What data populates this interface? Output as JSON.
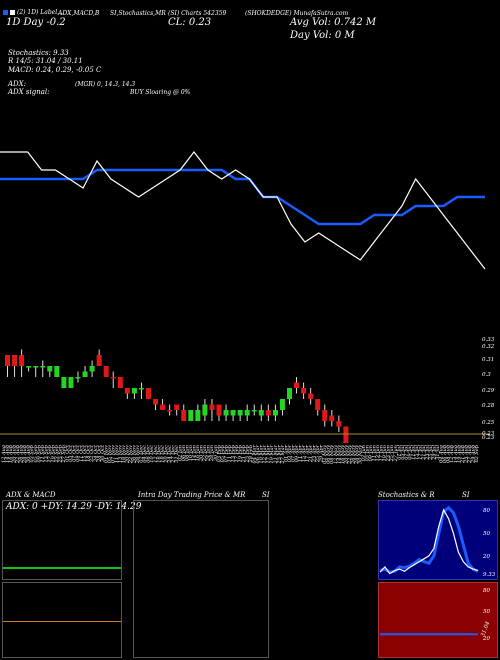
{
  "header": {
    "row1": [
      {
        "id": "h1",
        "text": "(2) 1D) Label..."
      },
      {
        "id": "h2",
        "text": "ADX,MACD,B"
      },
      {
        "id": "h3",
        "text": "SI,Stochastics,MR"
      },
      {
        "id": "h4",
        "text": "(SI) Charts 542359"
      },
      {
        "id": "h5",
        "text": "(SHOKDEDGE) MunafaSutra.com"
      }
    ],
    "day_change": "1D Day  -0.2",
    "close": "CL: 0.23",
    "avg_vol": "Avg Vol: 0.742  M",
    "day_vol": "Day Vol: 0  M",
    "stochastics": "Stochastics: 9.33",
    "r_stoch": "R  14/5: 31.04  / 30.11",
    "macd": "MACD: 0.24,  0.29,  -0.05  C",
    "adx": "ADX:",
    "adx_mid": "(MGR) 0,  14.3,  14.3",
    "adx_signal": "ADX  signal:",
    "adx_signal_value": "BUY Sloaring @ 0%",
    "legend_colors": [
      "#1a5cff",
      "#ffffff"
    ]
  },
  "price_axis_labels": [
    "0.33",
    "0.33",
    "0.32",
    "0.31",
    "0.3",
    "0.29",
    "0.28",
    "0.25",
    "0.23",
    "0.23",
    "0.21"
  ],
  "date_labels": [
    "12 Aug",
    "14 Aug",
    "16 Aug",
    "20 Aug",
    "22 Aug",
    "26 Aug",
    "28 Aug",
    "30 Aug",
    "03 Sep",
    "05 Sep",
    "09 Sep",
    "11 Sep",
    "13 Sep",
    "17 Sep",
    "19 Sep",
    "23 Sep",
    "25 Sep",
    "27 Sep",
    "01 Oct",
    "03 Oct",
    "07 Oct",
    "09 Oct",
    "11 Oct",
    "15 Oct",
    "18 Oct",
    "22 Oct",
    "24 Oct",
    "28 Oct",
    "30 Oct",
    "01 Nov",
    "05 Nov",
    "07 Nov",
    "11 Nov",
    "13 Nov",
    "18 Nov",
    "20 Nov",
    "22 Nov",
    "26 Nov",
    "28 Nov",
    "02 Dec",
    "04 Dec",
    "06 Dec",
    "10 Dec",
    "12 Dec",
    "16 Dec",
    "18 Dec",
    "20 Dec",
    "24 Dec",
    "27 Dec",
    "31 Dec",
    "02 Jan",
    "06 Jan",
    "08 Jan",
    "10 Jan",
    "14 Jan",
    "16 Jan",
    "20 Jan",
    "22 Jan",
    "24 Jan",
    "28 Jan",
    "30 Jan",
    "03 Feb",
    "05 Feb",
    "07 Feb",
    "11 Feb",
    "13 Feb",
    "17 Feb",
    "19 Feb",
    "21 Feb",
    "25 Feb",
    "28 Feb",
    "04 Mar",
    "06 Mar",
    "10 Mar",
    "12 Mar",
    "17 Mar",
    "19 Mar",
    "21 Mar",
    "25 Mar",
    "27 Mar",
    "01 Apr",
    "03 Apr",
    "07 Apr",
    "09 Apr",
    "11 Apr",
    "15 Apr",
    "17 Apr",
    "21 Apr",
    "23 Apr",
    "25 Apr",
    "29 Apr",
    "02 May",
    "06 May",
    "08 May",
    "12 May",
    "14 May",
    "16 May",
    "20 May",
    "22 May",
    "26 May",
    "28 May",
    "30 May",
    "03 Jun",
    "05 Jun",
    "09 Jun",
    "11 Jun",
    "13 Jun",
    "17 Jun",
    "19 Jun",
    "23 Jun",
    "25 Jun",
    "27 Jun",
    "01 Jul",
    "03 Jul",
    "07 Jul",
    "09 Jul",
    "11 Jul",
    "15 Jul",
    "17 Jul",
    "21 Jul",
    "23 Jul",
    "25 Jul",
    "29 Jul",
    "31 Jul",
    "04 Aug",
    "06 Aug",
    "08 Aug",
    "12 Aug",
    "14 Aug",
    "19 Aug",
    "21 Aug",
    "25 Aug",
    "27 Aug",
    "29 Aug",
    "02 Sep",
    "04 Sep"
  ],
  "panels": {
    "adx_macd": {
      "title": "ADX  & MACD",
      "readout": "ADX: 0   +DY: 14.29  -DY: 14.29"
    },
    "intraday": {
      "title": "Intra  Day Trading Price  & MR",
      "title_right": "SI"
    },
    "stoch": {
      "title": "Stochastics & R",
      "title_right": "SI",
      "axis": [
        "80",
        "50",
        "20",
        "9.33"
      ],
      "lower_axis": [
        "80",
        "50",
        "20",
        "31.04"
      ]
    }
  },
  "chart_data": [
    {
      "type": "line",
      "title": "",
      "series": [
        {
          "name": "",
          "color": "#1a5cff",
          "values": [
            0.52,
            0.52,
            0.52,
            0.52,
            0.52,
            0.52,
            0.52,
            0.53,
            0.53,
            0.53,
            0.53,
            0.53,
            0.53,
            0.53,
            0.53,
            0.53,
            0.53,
            0.52,
            0.52,
            0.5,
            0.5,
            0.49,
            0.48,
            0.47,
            0.47,
            0.47,
            0.47,
            0.48,
            0.48,
            0.48,
            0.49,
            0.49,
            0.49,
            0.5,
            0.5,
            0.5
          ]
        },
        {
          "name": "",
          "color": "#ffffff",
          "values": [
            0.55,
            0.55,
            0.55,
            0.53,
            0.53,
            0.52,
            0.51,
            0.54,
            0.52,
            0.51,
            0.5,
            0.51,
            0.52,
            0.53,
            0.55,
            0.53,
            0.52,
            0.53,
            0.52,
            0.5,
            0.5,
            0.47,
            0.45,
            0.46,
            0.45,
            0.44,
            0.43,
            0.45,
            0.47,
            0.49,
            0.52,
            0.5,
            0.48,
            0.46,
            0.44,
            0.42
          ]
        }
      ]
    },
    {
      "type": "candlestick",
      "title": "",
      "candles": [
        {
          "o": 0.32,
          "c": 0.33,
          "h": 0.33,
          "l": 0.31,
          "up": false
        },
        {
          "o": 0.33,
          "c": 0.32,
          "h": 0.33,
          "l": 0.31,
          "up": false
        },
        {
          "o": 0.32,
          "c": 0.33,
          "h": 0.335,
          "l": 0.31,
          "up": false
        },
        {
          "o": 0.32,
          "c": 0.32,
          "h": 0.32,
          "l": 0.315,
          "up": true
        },
        {
          "o": 0.32,
          "c": 0.32,
          "h": 0.32,
          "l": 0.31,
          "up": true
        },
        {
          "o": 0.32,
          "c": 0.32,
          "h": 0.325,
          "l": 0.31,
          "up": true
        },
        {
          "o": 0.315,
          "c": 0.32,
          "h": 0.32,
          "l": 0.31,
          "up": true
        },
        {
          "o": 0.32,
          "c": 0.31,
          "h": 0.32,
          "l": 0.31,
          "up": true
        },
        {
          "o": 0.31,
          "c": 0.3,
          "h": 0.31,
          "l": 0.3,
          "up": true
        },
        {
          "o": 0.3,
          "c": 0.31,
          "h": 0.31,
          "l": 0.3,
          "up": true
        },
        {
          "o": 0.31,
          "c": 0.31,
          "h": 0.315,
          "l": 0.305,
          "up": true
        },
        {
          "o": 0.31,
          "c": 0.315,
          "h": 0.32,
          "l": 0.31,
          "up": true
        },
        {
          "o": 0.32,
          "c": 0.315,
          "h": 0.325,
          "l": 0.31,
          "up": true
        },
        {
          "o": 0.33,
          "c": 0.32,
          "h": 0.335,
          "l": 0.32,
          "up": false
        },
        {
          "o": 0.32,
          "c": 0.31,
          "h": 0.32,
          "l": 0.31,
          "up": false
        },
        {
          "o": 0.31,
          "c": 0.31,
          "h": 0.315,
          "l": 0.3,
          "up": false
        },
        {
          "o": 0.31,
          "c": 0.3,
          "h": 0.31,
          "l": 0.3,
          "up": false
        },
        {
          "o": 0.3,
          "c": 0.295,
          "h": 0.3,
          "l": 0.29,
          "up": false
        },
        {
          "o": 0.295,
          "c": 0.3,
          "h": 0.3,
          "l": 0.29,
          "up": true
        },
        {
          "o": 0.3,
          "c": 0.3,
          "h": 0.305,
          "l": 0.29,
          "up": true
        },
        {
          "o": 0.3,
          "c": 0.29,
          "h": 0.3,
          "l": 0.29,
          "up": false
        },
        {
          "o": 0.29,
          "c": 0.285,
          "h": 0.29,
          "l": 0.28,
          "up": false
        },
        {
          "o": 0.285,
          "c": 0.28,
          "h": 0.29,
          "l": 0.28,
          "up": false
        },
        {
          "o": 0.28,
          "c": 0.28,
          "h": 0.285,
          "l": 0.275,
          "up": false
        },
        {
          "o": 0.28,
          "c": 0.285,
          "h": 0.285,
          "l": 0.275,
          "up": false
        },
        {
          "o": 0.28,
          "c": 0.27,
          "h": 0.285,
          "l": 0.27,
          "up": false
        },
        {
          "o": 0.27,
          "c": 0.28,
          "h": 0.28,
          "l": 0.27,
          "up": true
        },
        {
          "o": 0.27,
          "c": 0.28,
          "h": 0.285,
          "l": 0.27,
          "up": true
        },
        {
          "o": 0.275,
          "c": 0.285,
          "h": 0.29,
          "l": 0.27,
          "up": true
        },
        {
          "o": 0.285,
          "c": 0.28,
          "h": 0.29,
          "l": 0.27,
          "up": false
        },
        {
          "o": 0.285,
          "c": 0.275,
          "h": 0.285,
          "l": 0.27,
          "up": false
        },
        {
          "o": 0.275,
          "c": 0.28,
          "h": 0.285,
          "l": 0.27,
          "up": true
        },
        {
          "o": 0.275,
          "c": 0.28,
          "h": 0.28,
          "l": 0.27,
          "up": true
        },
        {
          "o": 0.275,
          "c": 0.28,
          "h": 0.28,
          "l": 0.27,
          "up": true
        },
        {
          "o": 0.275,
          "c": 0.28,
          "h": 0.285,
          "l": 0.27,
          "up": true
        },
        {
          "o": 0.28,
          "c": 0.28,
          "h": 0.285,
          "l": 0.275,
          "up": true
        },
        {
          "o": 0.275,
          "c": 0.28,
          "h": 0.285,
          "l": 0.27,
          "up": true
        },
        {
          "o": 0.28,
          "c": 0.275,
          "h": 0.285,
          "l": 0.27,
          "up": false
        },
        {
          "o": 0.275,
          "c": 0.28,
          "h": 0.285,
          "l": 0.27,
          "up": true
        },
        {
          "o": 0.28,
          "c": 0.29,
          "h": 0.29,
          "l": 0.275,
          "up": true
        },
        {
          "o": 0.29,
          "c": 0.3,
          "h": 0.3,
          "l": 0.285,
          "up": true
        },
        {
          "o": 0.3,
          "c": 0.305,
          "h": 0.31,
          "l": 0.295,
          "up": false
        },
        {
          "o": 0.3,
          "c": 0.295,
          "h": 0.305,
          "l": 0.29,
          "up": false
        },
        {
          "o": 0.295,
          "c": 0.29,
          "h": 0.3,
          "l": 0.285,
          "up": false
        },
        {
          "o": 0.29,
          "c": 0.28,
          "h": 0.29,
          "l": 0.275,
          "up": false
        },
        {
          "o": 0.28,
          "c": 0.27,
          "h": 0.285,
          "l": 0.265,
          "up": false
        },
        {
          "o": 0.27,
          "c": 0.275,
          "h": 0.28,
          "l": 0.265,
          "up": false
        },
        {
          "o": 0.27,
          "c": 0.265,
          "h": 0.275,
          "l": 0.26,
          "up": false
        },
        {
          "o": 0.265,
          "c": 0.25,
          "h": 0.265,
          "l": 0.25,
          "up": false
        }
      ]
    },
    {
      "type": "line",
      "title": "Stochastics & R",
      "ylim": [
        0,
        100
      ],
      "series": [
        {
          "name": "",
          "color": "#1a5cff",
          "values": [
            10,
            12,
            8,
            9,
            15,
            14,
            16,
            20,
            25,
            22,
            20,
            30,
            60,
            90,
            95,
            88,
            70,
            45,
            20,
            12,
            9
          ]
        },
        {
          "name": "",
          "color": "#ffffff",
          "values": [
            8,
            15,
            6,
            10,
            12,
            9,
            14,
            18,
            22,
            26,
            30,
            40,
            70,
            92,
            80,
            60,
            35,
            22,
            15,
            12,
            10
          ]
        }
      ]
    },
    {
      "type": "line",
      "title": "",
      "ylim": [
        0,
        100
      ],
      "series": [
        {
          "name": "",
          "color": "#1a5cff",
          "values": [
            31,
            31,
            31,
            31,
            31,
            31,
            31,
            31,
            31,
            31,
            31,
            31,
            31,
            31,
            31,
            31,
            31,
            31,
            31,
            31,
            31
          ]
        }
      ]
    }
  ]
}
